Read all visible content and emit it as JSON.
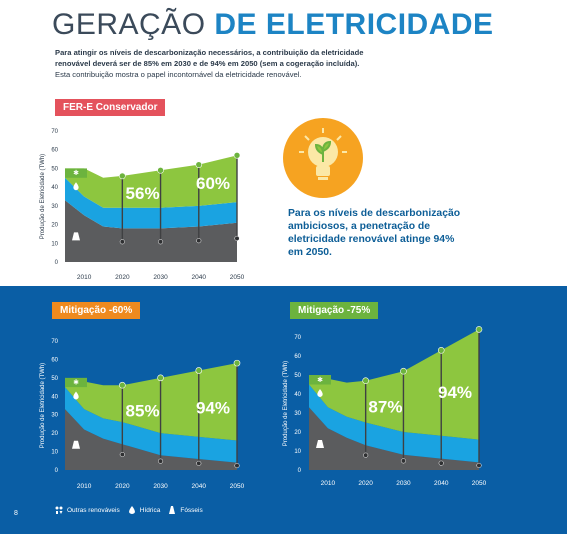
{
  "page": {
    "title_thin": "GERAÇÃO",
    "title_bold": "DE ELETRICIDADE",
    "intro_bold": "Para atingir os níveis de descarbonização necessários, a contribuição da eletricidade renovável deverá ser de 85% em 2030 e de 94% em 2050 (sem a cogeração incluída).",
    "intro_normal": "Esta contribuição mostra o papel incontornável da eletricidade renovável.",
    "callout": "Para os níveis de descarbonização ambiciosos, a penetração de eletricidade renovável atinge 94% em 2050.",
    "page_number": "8",
    "icons": [
      "lightbulb-icon",
      "wind-turbine-icon",
      "water-drop-icon",
      "factory-icon"
    ],
    "colors": {
      "green": "#8dc63f",
      "blue": "#1aa3e1",
      "gray": "#5b5c5e",
      "bg_blue": "#0a5ea5"
    }
  },
  "legend": [
    {
      "label": "Outras renováveis",
      "icon": "other-renewables-icon",
      "color": "#8dc63f"
    },
    {
      "label": "Hídrica",
      "icon": "water-drop-icon",
      "color": "#1aa3e1"
    },
    {
      "label": "Fósseis",
      "icon": "factory-icon",
      "color": "#5b5c5e"
    }
  ],
  "chart_data": [
    {
      "type": "area",
      "title": "FER-E Conservador",
      "ylabel": "Produção de Eletricidade (TWh)",
      "ylim": [
        0,
        70
      ],
      "yticks": [
        0,
        10,
        20,
        30,
        40,
        50,
        60,
        70
      ],
      "xticks": [
        2010,
        2020,
        2030,
        2040,
        2050
      ],
      "x": [
        2005,
        2010,
        2015,
        2020,
        2030,
        2040,
        2050
      ],
      "series": [
        {
          "name": "Fósseis",
          "values": [
            33,
            25,
            19,
            18,
            18,
            19,
            21
          ]
        },
        {
          "name": "Hídrica",
          "values": [
            12,
            10,
            10,
            11,
            11,
            11,
            11
          ]
        },
        {
          "name": "Outras renováveis",
          "values": [
            5,
            15,
            16,
            17,
            20,
            22,
            25
          ]
        }
      ],
      "annotations": [
        {
          "x": 2030,
          "text": "56%"
        },
        {
          "x": 2050,
          "text": "60%"
        }
      ]
    },
    {
      "type": "area",
      "title": "Mitigação -60%",
      "ylabel": "Produção de Eletricidade (TWh)",
      "ylim": [
        0,
        70
      ],
      "yticks": [
        0,
        10,
        20,
        30,
        40,
        50,
        60,
        70
      ],
      "xticks": [
        2010,
        2020,
        2030,
        2040,
        2050
      ],
      "x": [
        2005,
        2010,
        2015,
        2020,
        2030,
        2040,
        2050
      ],
      "series": [
        {
          "name": "Fósseis",
          "values": [
            33,
            22,
            17,
            14,
            8,
            6,
            4
          ]
        },
        {
          "name": "Hídrica",
          "values": [
            12,
            11,
            11,
            12,
            12,
            12,
            12
          ]
        },
        {
          "name": "Outras renováveis",
          "values": [
            5,
            15,
            18,
            20,
            30,
            36,
            42
          ]
        }
      ],
      "annotations": [
        {
          "x": 2030,
          "text": "85%"
        },
        {
          "x": 2050,
          "text": "94%"
        }
      ]
    },
    {
      "type": "area",
      "title": "Mitigação -75%",
      "ylabel": "Produção de Eletricidade (TWh)",
      "ylim": [
        0,
        70
      ],
      "yticks": [
        0,
        10,
        20,
        30,
        40,
        50,
        60,
        70
      ],
      "xticks": [
        2010,
        2020,
        2030,
        2040,
        2050
      ],
      "x": [
        2005,
        2010,
        2015,
        2020,
        2030,
        2040,
        2050
      ],
      "series": [
        {
          "name": "Fósseis",
          "values": [
            33,
            22,
            17,
            13,
            8,
            6,
            4
          ]
        },
        {
          "name": "Hídrica",
          "values": [
            12,
            11,
            11,
            12,
            12,
            12,
            12
          ]
        },
        {
          "name": "Outras renováveis",
          "values": [
            5,
            15,
            18,
            22,
            32,
            45,
            58
          ]
        }
      ],
      "annotations": [
        {
          "x": 2030,
          "text": "87%"
        },
        {
          "x": 2050,
          "text": "94%"
        }
      ]
    }
  ]
}
